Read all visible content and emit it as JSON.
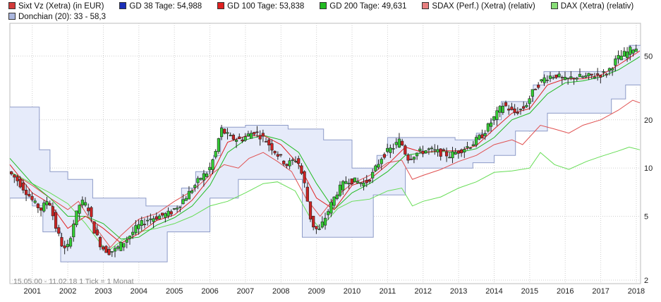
{
  "legend": [
    {
      "label": "Sixt Vz (Xetra) (in EUR)",
      "color": "#d23a3a"
    },
    {
      "label": "GD 38 Tage: 54,988",
      "color": "#1a2fb8"
    },
    {
      "label": "GD 100 Tage: 53,838",
      "color": "#e02020"
    },
    {
      "label": "GD 200 Tage: 49,631",
      "color": "#22bb22"
    },
    {
      "label": "SDAX (Perf.) (Xetra) (relativ)",
      "color": "#e88080"
    },
    {
      "label": "DAX (Xetra) (relativ)",
      "color": "#88dd77"
    },
    {
      "label": "Donchian (20): 33 - 58,3",
      "color": "#aab6dd"
    }
  ],
  "footer_note": "15.05.00 - 11.02.18   1 Tick = 1 Monat",
  "colors": {
    "up": "#33cc33",
    "down": "#cc2222",
    "band_fill": "#e6ebfa",
    "band_line": "#8d9bc8",
    "ma_red": "#e02020",
    "ma_green": "#22bb22",
    "sdax": "#e05050",
    "dax": "#66dd55",
    "grid": "#cfcfcf"
  },
  "chart_data": {
    "type": "candlestick",
    "title": "",
    "y_scale": "log",
    "ylim": [
      1.9,
      80
    ],
    "yticks": [
      2,
      5,
      10,
      20,
      50
    ],
    "xlim": [
      2000.37,
      2018.12
    ],
    "xticks": [
      "2001",
      "2002",
      "2003",
      "2004",
      "2005",
      "2006",
      "2007",
      "2008",
      "2009",
      "2010",
      "2011",
      "2012",
      "2013",
      "2014",
      "2015",
      "2016",
      "2017",
      "2018"
    ],
    "grid": true,
    "legend_position": "top",
    "price_path": [
      [
        2000.37,
        9.5
      ],
      [
        2000.6,
        8.5
      ],
      [
        2000.9,
        7
      ],
      [
        2001.1,
        6
      ],
      [
        2001.3,
        5.5
      ],
      [
        2001.5,
        6.5
      ],
      [
        2001.7,
        4.3
      ],
      [
        2001.9,
        3.2
      ],
      [
        2002.0,
        3.0
      ],
      [
        2002.2,
        4.5
      ],
      [
        2002.4,
        6.2
      ],
      [
        2002.6,
        5.8
      ],
      [
        2002.8,
        4.0
      ],
      [
        2003.0,
        3.2
      ],
      [
        2003.2,
        3.0
      ],
      [
        2003.4,
        3.1
      ],
      [
        2003.7,
        3.6
      ],
      [
        2004.0,
        4.3
      ],
      [
        2004.3,
        4.8
      ],
      [
        2004.6,
        5.0
      ],
      [
        2004.9,
        5.2
      ],
      [
        2005.2,
        6.0
      ],
      [
        2005.5,
        7.2
      ],
      [
        2005.8,
        8.8
      ],
      [
        2006.0,
        9.5
      ],
      [
        2006.2,
        12.5
      ],
      [
        2006.35,
        17.5
      ],
      [
        2006.6,
        15.5
      ],
      [
        2006.9,
        15.0
      ],
      [
        2007.1,
        16.0
      ],
      [
        2007.3,
        17.0
      ],
      [
        2007.6,
        15.0
      ],
      [
        2007.9,
        12.5
      ],
      [
        2008.2,
        10.5
      ],
      [
        2008.5,
        11.5
      ],
      [
        2008.7,
        8.0
      ],
      [
        2008.9,
        4.5
      ],
      [
        2009.1,
        4.0
      ],
      [
        2009.3,
        5.0
      ],
      [
        2009.6,
        7.0
      ],
      [
        2009.9,
        8.5
      ],
      [
        2010.2,
        8.2
      ],
      [
        2010.4,
        8.0
      ],
      [
        2010.6,
        9.0
      ],
      [
        2010.9,
        12.0
      ],
      [
        2011.2,
        13.5
      ],
      [
        2011.4,
        15.0
      ],
      [
        2011.6,
        11.5
      ],
      [
        2011.9,
        12.5
      ],
      [
        2012.2,
        13.0
      ],
      [
        2012.5,
        12.5
      ],
      [
        2012.8,
        12.0
      ],
      [
        2013.1,
        13.0
      ],
      [
        2013.4,
        14.0
      ],
      [
        2013.7,
        16.0
      ],
      [
        2014.0,
        20.0
      ],
      [
        2014.3,
        25.0
      ],
      [
        2014.6,
        22.0
      ],
      [
        2014.9,
        24.0
      ],
      [
        2015.2,
        32.0
      ],
      [
        2015.5,
        37.0
      ],
      [
        2015.8,
        38.0
      ],
      [
        2016.0,
        35.0
      ],
      [
        2016.3,
        37.0
      ],
      [
        2016.6,
        37.0
      ],
      [
        2016.9,
        38.0
      ],
      [
        2017.2,
        39.0
      ],
      [
        2017.5,
        48.0
      ],
      [
        2017.8,
        53.0
      ],
      [
        2018.0,
        57.0
      ],
      [
        2018.1,
        55.0
      ]
    ],
    "series": [
      {
        "name": "GD 100 Tage",
        "values": [
          [
            2000.37,
            10.5
          ],
          [
            2001.0,
            7.0
          ],
          [
            2001.5,
            6.0
          ],
          [
            2002.0,
            4.2
          ],
          [
            2002.5,
            5.0
          ],
          [
            2003.0,
            4.2
          ],
          [
            2003.5,
            3.4
          ],
          [
            2004.0,
            3.9
          ],
          [
            2004.5,
            4.7
          ],
          [
            2005.0,
            5.1
          ],
          [
            2005.5,
            6.3
          ],
          [
            2006.0,
            8.7
          ],
          [
            2006.5,
            14.5
          ],
          [
            2007.0,
            15.8
          ],
          [
            2007.5,
            16.0
          ],
          [
            2008.0,
            14.0
          ],
          [
            2008.5,
            10.5
          ],
          [
            2009.0,
            6.5
          ],
          [
            2009.5,
            5.5
          ],
          [
            2010.0,
            7.8
          ],
          [
            2010.5,
            8.5
          ],
          [
            2011.0,
            10.5
          ],
          [
            2011.5,
            13.5
          ],
          [
            2012.0,
            12.5
          ],
          [
            2012.5,
            12.8
          ],
          [
            2013.0,
            12.8
          ],
          [
            2013.5,
            13.8
          ],
          [
            2014.0,
            17.5
          ],
          [
            2014.5,
            22.0
          ],
          [
            2015.0,
            23.5
          ],
          [
            2015.5,
            33.0
          ],
          [
            2016.0,
            36.0
          ],
          [
            2016.5,
            36.0
          ],
          [
            2017.0,
            38.0
          ],
          [
            2017.5,
            44.0
          ],
          [
            2018.0,
            52.0
          ],
          [
            2018.1,
            53.8
          ]
        ]
      },
      {
        "name": "GD 200 Tage",
        "values": [
          [
            2000.37,
            11.5
          ],
          [
            2001.0,
            8.0
          ],
          [
            2001.5,
            6.5
          ],
          [
            2002.0,
            5.0
          ],
          [
            2002.5,
            5.0
          ],
          [
            2003.0,
            4.5
          ],
          [
            2003.5,
            3.6
          ],
          [
            2004.0,
            3.7
          ],
          [
            2004.5,
            4.4
          ],
          [
            2005.0,
            4.9
          ],
          [
            2005.5,
            5.8
          ],
          [
            2006.0,
            7.8
          ],
          [
            2006.5,
            12.5
          ],
          [
            2007.0,
            15.0
          ],
          [
            2007.5,
            16.0
          ],
          [
            2008.0,
            15.0
          ],
          [
            2008.5,
            12.5
          ],
          [
            2009.0,
            8.0
          ],
          [
            2009.5,
            5.5
          ],
          [
            2010.0,
            7.0
          ],
          [
            2010.5,
            8.0
          ],
          [
            2011.0,
            9.5
          ],
          [
            2011.5,
            12.0
          ],
          [
            2012.0,
            12.5
          ],
          [
            2012.5,
            12.7
          ],
          [
            2013.0,
            12.5
          ],
          [
            2013.5,
            13.2
          ],
          [
            2014.0,
            15.5
          ],
          [
            2014.5,
            20.0
          ],
          [
            2015.0,
            22.0
          ],
          [
            2015.5,
            29.0
          ],
          [
            2016.0,
            34.0
          ],
          [
            2016.5,
            35.0
          ],
          [
            2017.0,
            37.0
          ],
          [
            2017.5,
            41.0
          ],
          [
            2018.0,
            48.0
          ],
          [
            2018.1,
            49.6
          ]
        ]
      },
      {
        "name": "SDAX (Perf.) (Xetra) (relativ)",
        "values": [
          [
            2000.37,
            9.5
          ],
          [
            2001.0,
            7.8
          ],
          [
            2001.5,
            6.5
          ],
          [
            2002.0,
            5.5
          ],
          [
            2002.3,
            6.2
          ],
          [
            2002.7,
            4.5
          ],
          [
            2003.2,
            3.2
          ],
          [
            2003.5,
            3.8
          ],
          [
            2004.0,
            4.8
          ],
          [
            2004.5,
            5.2
          ],
          [
            2005.0,
            6.2
          ],
          [
            2005.5,
            7.2
          ],
          [
            2006.0,
            9.0
          ],
          [
            2006.4,
            10.5
          ],
          [
            2006.8,
            10.0
          ],
          [
            2007.1,
            11.5
          ],
          [
            2007.5,
            12.5
          ],
          [
            2007.9,
            11.0
          ],
          [
            2008.3,
            9.5
          ],
          [
            2008.7,
            6.5
          ],
          [
            2009.1,
            5.0
          ],
          [
            2009.5,
            6.5
          ],
          [
            2010.0,
            8.0
          ],
          [
            2010.5,
            9.0
          ],
          [
            2011.0,
            10.8
          ],
          [
            2011.4,
            11.2
          ],
          [
            2011.7,
            8.5
          ],
          [
            2012.0,
            9.0
          ],
          [
            2012.5,
            9.8
          ],
          [
            2013.0,
            11.0
          ],
          [
            2013.5,
            12.0
          ],
          [
            2014.0,
            14.0
          ],
          [
            2014.5,
            15.0
          ],
          [
            2014.8,
            14.0
          ],
          [
            2015.3,
            18.5
          ],
          [
            2015.7,
            17.5
          ],
          [
            2016.1,
            16.5
          ],
          [
            2016.5,
            18.5
          ],
          [
            2017.0,
            20.0
          ],
          [
            2017.5,
            23.0
          ],
          [
            2017.9,
            26.5
          ],
          [
            2018.1,
            25.5
          ]
        ]
      },
      {
        "name": "DAX (Xetra) (relativ)",
        "values": [
          [
            2000.37,
            9.5
          ],
          [
            2001.0,
            8.0
          ],
          [
            2001.5,
            7.0
          ],
          [
            2002.0,
            6.0
          ],
          [
            2002.5,
            4.5
          ],
          [
            2003.1,
            3.0
          ],
          [
            2003.5,
            3.5
          ],
          [
            2004.0,
            4.0
          ],
          [
            2004.5,
            4.2
          ],
          [
            2005.0,
            4.5
          ],
          [
            2005.5,
            5.0
          ],
          [
            2006.0,
            5.8
          ],
          [
            2006.5,
            6.2
          ],
          [
            2007.0,
            7.0
          ],
          [
            2007.5,
            8.0
          ],
          [
            2007.9,
            8.2
          ],
          [
            2008.4,
            7.2
          ],
          [
            2008.8,
            5.0
          ],
          [
            2009.1,
            4.2
          ],
          [
            2009.6,
            5.6
          ],
          [
            2010.0,
            6.2
          ],
          [
            2010.5,
            6.4
          ],
          [
            2011.0,
            7.2
          ],
          [
            2011.4,
            7.5
          ],
          [
            2011.7,
            5.8
          ],
          [
            2012.0,
            6.2
          ],
          [
            2012.5,
            6.6
          ],
          [
            2013.0,
            7.5
          ],
          [
            2013.5,
            8.2
          ],
          [
            2014.0,
            9.4
          ],
          [
            2014.5,
            9.6
          ],
          [
            2015.0,
            10.0
          ],
          [
            2015.3,
            12.5
          ],
          [
            2015.7,
            10.5
          ],
          [
            2016.1,
            9.8
          ],
          [
            2016.6,
            11.0
          ],
          [
            2017.0,
            11.8
          ],
          [
            2017.5,
            12.8
          ],
          [
            2017.8,
            13.5
          ],
          [
            2018.1,
            13.0
          ]
        ]
      },
      {
        "name": "Donchian upper",
        "values": [
          [
            2000.37,
            24
          ],
          [
            2001.2,
            24
          ],
          [
            2001.2,
            13
          ],
          [
            2001.5,
            13
          ],
          [
            2001.5,
            9.5
          ],
          [
            2002.0,
            9.5
          ],
          [
            2002.0,
            8.5
          ],
          [
            2002.7,
            8.5
          ],
          [
            2002.7,
            6.5
          ],
          [
            2004.2,
            6.5
          ],
          [
            2004.2,
            5.8
          ],
          [
            2005.2,
            5.8
          ],
          [
            2005.2,
            7.5
          ],
          [
            2005.6,
            7.5
          ],
          [
            2005.6,
            9.5
          ],
          [
            2006.1,
            9.5
          ],
          [
            2006.1,
            12
          ],
          [
            2006.3,
            12
          ],
          [
            2006.3,
            18
          ],
          [
            2007.0,
            18
          ],
          [
            2007.0,
            18.5
          ],
          [
            2008.2,
            18.5
          ],
          [
            2008.2,
            17.5
          ],
          [
            2009.2,
            17.5
          ],
          [
            2009.2,
            15
          ],
          [
            2010.0,
            15
          ],
          [
            2010.0,
            10
          ],
          [
            2010.7,
            10
          ],
          [
            2010.7,
            12
          ],
          [
            2011.0,
            12
          ],
          [
            2011.0,
            15.5
          ],
          [
            2012.9,
            15.5
          ],
          [
            2012.9,
            15.0
          ],
          [
            2013.5,
            15.0
          ],
          [
            2013.5,
            16.5
          ],
          [
            2013.9,
            16.5
          ],
          [
            2013.9,
            20
          ],
          [
            2014.2,
            20
          ],
          [
            2014.2,
            26
          ],
          [
            2015.1,
            26
          ],
          [
            2015.1,
            33
          ],
          [
            2015.4,
            33
          ],
          [
            2015.4,
            40
          ],
          [
            2017.4,
            40
          ],
          [
            2017.4,
            48
          ],
          [
            2017.8,
            48
          ],
          [
            2017.8,
            58.3
          ],
          [
            2018.12,
            58.3
          ]
        ]
      },
      {
        "name": "Donchian lower",
        "values": [
          [
            2000.37,
            6.5
          ],
          [
            2001.0,
            6.5
          ],
          [
            2001.0,
            5.8
          ],
          [
            2001.3,
            5.8
          ],
          [
            2001.3,
            4.0
          ],
          [
            2001.8,
            4.0
          ],
          [
            2001.8,
            2.6
          ],
          [
            2004.8,
            2.6
          ],
          [
            2004.8,
            4.0
          ],
          [
            2006.0,
            4.0
          ],
          [
            2006.0,
            6.5
          ],
          [
            2006.8,
            6.5
          ],
          [
            2006.8,
            8.5
          ],
          [
            2008.6,
            8.5
          ],
          [
            2008.6,
            3.7
          ],
          [
            2010.6,
            3.7
          ],
          [
            2010.6,
            6.8
          ],
          [
            2011.5,
            6.8
          ],
          [
            2011.5,
            10.0
          ],
          [
            2013.4,
            10.0
          ],
          [
            2013.4,
            10.8
          ],
          [
            2014.0,
            10.8
          ],
          [
            2014.0,
            12
          ],
          [
            2014.6,
            12
          ],
          [
            2014.6,
            17
          ],
          [
            2015.5,
            17
          ],
          [
            2015.5,
            22
          ],
          [
            2017.3,
            22
          ],
          [
            2017.3,
            27
          ],
          [
            2017.7,
            27
          ],
          [
            2017.7,
            33
          ],
          [
            2018.12,
            33
          ]
        ]
      }
    ]
  }
}
